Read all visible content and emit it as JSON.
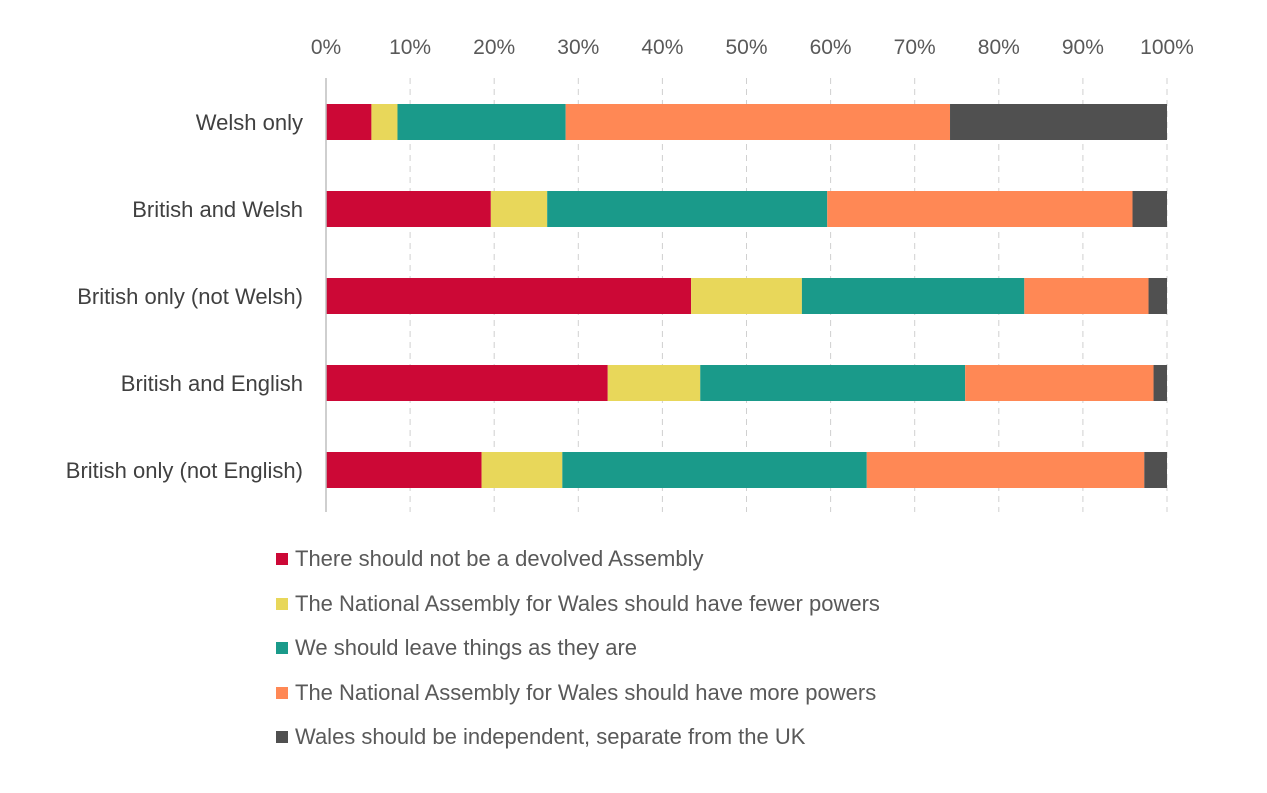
{
  "chart_data": {
    "type": "bar",
    "orientation": "horizontal",
    "stacked": "percent",
    "title": "",
    "xlabel": "",
    "ylabel": "",
    "xlim": [
      0,
      100
    ],
    "x_ticks": [
      "0%",
      "10%",
      "20%",
      "30%",
      "40%",
      "50%",
      "60%",
      "70%",
      "80%",
      "90%",
      "100%"
    ],
    "grid": true,
    "legend_position": "bottom",
    "categories": [
      "Welsh only",
      "British and Welsh",
      "British only (not Welsh)",
      "British and English",
      "British only (not English)"
    ],
    "series": [
      {
        "name": "There should not be a devolved Assembly",
        "color": "#CC0836",
        "values": [
          5.4,
          19.6,
          43.5,
          33.5,
          18.5
        ]
      },
      {
        "name": "The National Assembly for Wales should have fewer powers",
        "color": "#E8D75A",
        "values": [
          3.1,
          6.7,
          13.2,
          11.0,
          9.6
        ]
      },
      {
        "name": "We should leave things as they are",
        "color": "#1A9A8A",
        "values": [
          20.0,
          33.3,
          26.5,
          31.5,
          36.2
        ]
      },
      {
        "name": "The National Assembly for Wales should have more powers",
        "color": "#FF8855",
        "values": [
          45.7,
          36.3,
          14.8,
          22.4,
          33.0
        ]
      },
      {
        "name": "Wales should be independent, separate from the UK",
        "color": "#505050",
        "values": [
          25.8,
          4.1,
          2.2,
          1.6,
          2.7
        ]
      }
    ]
  }
}
